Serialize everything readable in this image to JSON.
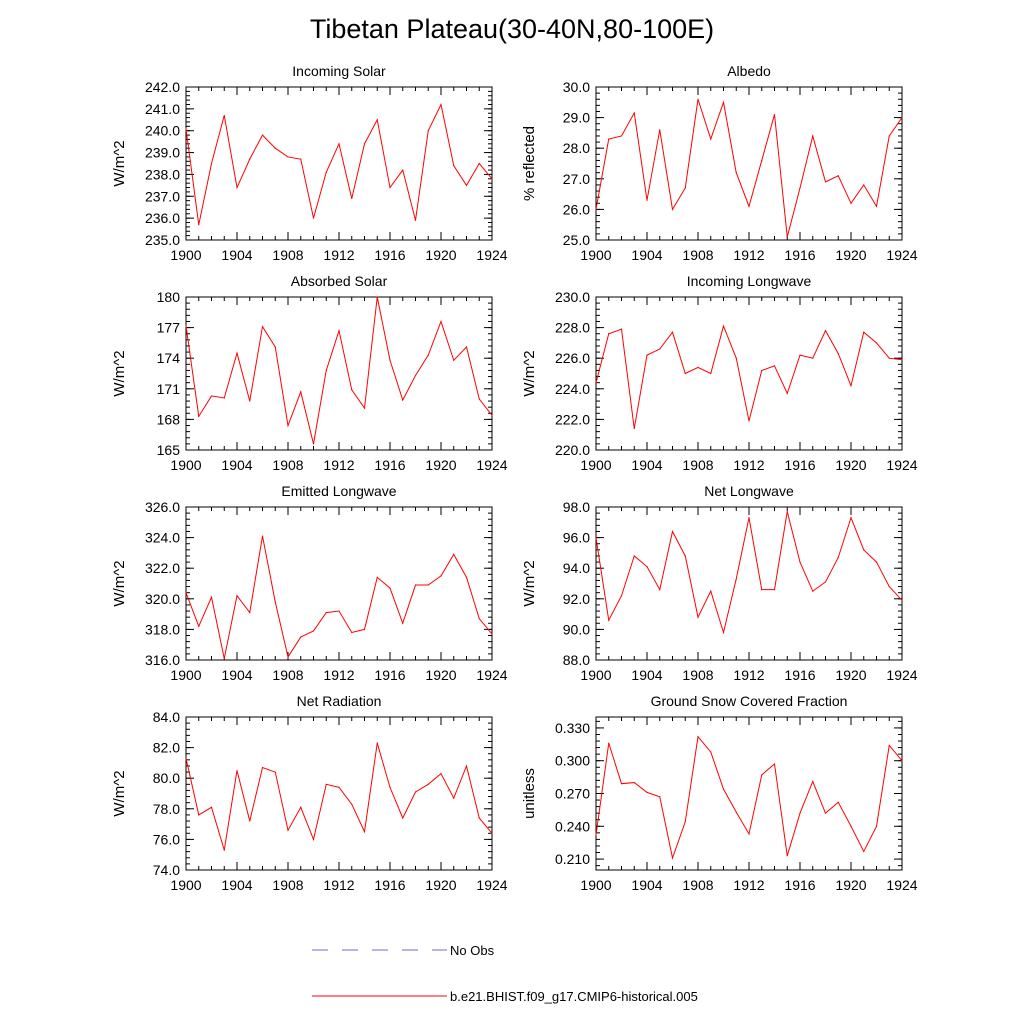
{
  "title": "Tibetan Plateau(30-40N,80-100E)",
  "colors": {
    "model_line": "#ff0000",
    "obs_line": "#6b6bd6",
    "axis": "#000000"
  },
  "legend": {
    "obs_label": "No Obs",
    "model_label": "b.e21.BHIST.f09_g17.CMIP6-historical.005"
  },
  "chart_data": [
    {
      "type": "line",
      "title": "Incoming Solar",
      "ylabel": "W/m^2",
      "xlabel": "",
      "x": [
        1900,
        1901,
        1902,
        1903,
        1904,
        1905,
        1906,
        1907,
        1908,
        1909,
        1910,
        1911,
        1912,
        1913,
        1914,
        1915,
        1916,
        1917,
        1918,
        1919,
        1920,
        1921,
        1922,
        1923,
        1924
      ],
      "xlim": [
        1900,
        1924
      ],
      "xticks": [
        "1900",
        "1904",
        "1908",
        "1912",
        "1916",
        "1920",
        "1924"
      ],
      "ylim": [
        235,
        242
      ],
      "yticks": [
        "235.0",
        "236.0",
        "237.0",
        "238.0",
        "239.0",
        "240.0",
        "241.0",
        "242.0"
      ],
      "series": [
        {
          "name": "b.e21.BHIST.f09_g17.CMIP6-historical.005",
          "values": [
            240.1,
            235.7,
            238.5,
            240.7,
            237.4,
            238.7,
            239.8,
            239.2,
            238.8,
            238.7,
            236.0,
            238.1,
            239.4,
            236.9,
            239.4,
            240.5,
            237.4,
            238.2,
            235.9,
            240.0,
            241.2,
            238.4,
            237.5,
            238.5,
            237.8
          ]
        }
      ]
    },
    {
      "type": "line",
      "title": "Albedo",
      "ylabel": "% reflected",
      "xlabel": "",
      "x": [
        1900,
        1901,
        1902,
        1903,
        1904,
        1905,
        1906,
        1907,
        1908,
        1909,
        1910,
        1911,
        1912,
        1913,
        1914,
        1915,
        1916,
        1917,
        1918,
        1919,
        1920,
        1921,
        1922,
        1923,
        1924
      ],
      "xlim": [
        1900,
        1924
      ],
      "xticks": [
        "1900",
        "1904",
        "1908",
        "1912",
        "1916",
        "1920",
        "1924"
      ],
      "ylim": [
        25,
        30
      ],
      "yticks": [
        "25.0",
        "26.0",
        "27.0",
        "28.0",
        "29.0",
        "30.0"
      ],
      "series": [
        {
          "name": "b.e21.BHIST.f09_g17.CMIP6-historical.005",
          "values": [
            26.0,
            28.3,
            28.4,
            29.15,
            26.3,
            28.6,
            26.0,
            26.7,
            29.6,
            28.3,
            29.5,
            27.2,
            26.1,
            27.6,
            29.1,
            25.1,
            26.7,
            28.4,
            26.9,
            27.1,
            26.2,
            26.8,
            26.1,
            28.4,
            29.0
          ]
        }
      ]
    },
    {
      "type": "line",
      "title": "Absorbed Solar",
      "ylabel": "W/m^2",
      "xlabel": "",
      "x": [
        1900,
        1901,
        1902,
        1903,
        1904,
        1905,
        1906,
        1907,
        1908,
        1909,
        1910,
        1911,
        1912,
        1913,
        1914,
        1915,
        1916,
        1917,
        1918,
        1919,
        1920,
        1921,
        1922,
        1923,
        1924
      ],
      "xlim": [
        1900,
        1924
      ],
      "xticks": [
        "1900",
        "1904",
        "1908",
        "1912",
        "1916",
        "1920",
        "1924"
      ],
      "ylim": [
        165,
        180
      ],
      "yticks": [
        "165",
        "168",
        "171",
        "174",
        "177",
        "180"
      ],
      "series": [
        {
          "name": "b.e21.BHIST.f09_g17.CMIP6-historical.005",
          "values": [
            177.2,
            168.3,
            170.3,
            170.1,
            174.5,
            169.8,
            177.1,
            175.1,
            167.4,
            170.7,
            165.6,
            172.8,
            176.7,
            170.9,
            169.1,
            180.0,
            173.8,
            169.9,
            172.3,
            174.3,
            177.6,
            173.8,
            175.1,
            170.0,
            168.4
          ]
        }
      ]
    },
    {
      "type": "line",
      "title": "Incoming Longwave",
      "ylabel": "W/m^2",
      "xlabel": "",
      "x": [
        1900,
        1901,
        1902,
        1903,
        1904,
        1905,
        1906,
        1907,
        1908,
        1909,
        1910,
        1911,
        1912,
        1913,
        1914,
        1915,
        1916,
        1917,
        1918,
        1919,
        1920,
        1921,
        1922,
        1923,
        1924
      ],
      "xlim": [
        1900,
        1924
      ],
      "xticks": [
        "1900",
        "1904",
        "1908",
        "1912",
        "1916",
        "1920",
        "1924"
      ],
      "ylim": [
        220,
        230
      ],
      "yticks": [
        "220.0",
        "222.0",
        "224.0",
        "226.0",
        "228.0",
        "230.0"
      ],
      "series": [
        {
          "name": "b.e21.BHIST.f09_g17.CMIP6-historical.005",
          "values": [
            224.4,
            227.6,
            227.9,
            221.4,
            226.2,
            226.6,
            227.7,
            225.0,
            225.4,
            225.0,
            228.1,
            226.0,
            221.9,
            225.2,
            225.5,
            223.7,
            226.2,
            226.0,
            227.8,
            226.3,
            224.2,
            227.7,
            227.0,
            226.0,
            225.9
          ]
        }
      ]
    },
    {
      "type": "line",
      "title": "Emitted Longwave",
      "ylabel": "W/m^2",
      "xlabel": "",
      "x": [
        1900,
        1901,
        1902,
        1903,
        1904,
        1905,
        1906,
        1907,
        1908,
        1909,
        1910,
        1911,
        1912,
        1913,
        1914,
        1915,
        1916,
        1917,
        1918,
        1919,
        1920,
        1921,
        1922,
        1923,
        1924
      ],
      "xlim": [
        1900,
        1924
      ],
      "xticks": [
        "1900",
        "1904",
        "1908",
        "1912",
        "1916",
        "1920",
        "1924"
      ],
      "ylim": [
        316,
        326
      ],
      "yticks": [
        "316.0",
        "318.0",
        "320.0",
        "322.0",
        "324.0",
        "326.0"
      ],
      "series": [
        {
          "name": "b.e21.BHIST.f09_g17.CMIP6-historical.005",
          "values": [
            320.4,
            318.2,
            320.1,
            316.1,
            320.2,
            319.1,
            324.1,
            319.8,
            316.2,
            317.5,
            317.9,
            319.1,
            319.2,
            317.8,
            318.0,
            321.4,
            320.7,
            318.4,
            320.9,
            320.9,
            321.5,
            322.9,
            321.4,
            318.7,
            317.7
          ]
        }
      ]
    },
    {
      "type": "line",
      "title": "Net Longwave",
      "ylabel": "W/m^2",
      "xlabel": "",
      "x": [
        1900,
        1901,
        1902,
        1903,
        1904,
        1905,
        1906,
        1907,
        1908,
        1909,
        1910,
        1911,
        1912,
        1913,
        1914,
        1915,
        1916,
        1917,
        1918,
        1919,
        1920,
        1921,
        1922,
        1923,
        1924
      ],
      "xlim": [
        1900,
        1924
      ],
      "xticks": [
        "1900",
        "1904",
        "1908",
        "1912",
        "1916",
        "1920",
        "1924"
      ],
      "ylim": [
        88,
        98
      ],
      "yticks": [
        "88.0",
        "90.0",
        "92.0",
        "94.0",
        "96.0",
        "98.0"
      ],
      "series": [
        {
          "name": "b.e21.BHIST.f09_g17.CMIP6-historical.005",
          "values": [
            96.0,
            90.6,
            92.2,
            94.8,
            94.1,
            92.6,
            96.4,
            94.8,
            90.8,
            92.5,
            89.8,
            93.3,
            97.3,
            92.6,
            92.6,
            97.7,
            94.4,
            92.5,
            93.1,
            94.7,
            97.3,
            95.2,
            94.4,
            92.8,
            91.9
          ]
        }
      ]
    },
    {
      "type": "line",
      "title": "Net Radiation",
      "ylabel": "W/m^2",
      "xlabel": "",
      "x": [
        1900,
        1901,
        1902,
        1903,
        1904,
        1905,
        1906,
        1907,
        1908,
        1909,
        1910,
        1911,
        1912,
        1913,
        1914,
        1915,
        1916,
        1917,
        1918,
        1919,
        1920,
        1921,
        1922,
        1923,
        1924
      ],
      "xlim": [
        1900,
        1924
      ],
      "xticks": [
        "1900",
        "1904",
        "1908",
        "1912",
        "1916",
        "1920",
        "1924"
      ],
      "ylim": [
        74,
        84
      ],
      "yticks": [
        "74.0",
        "76.0",
        "78.0",
        "80.0",
        "82.0",
        "84.0"
      ],
      "series": [
        {
          "name": "b.e21.BHIST.f09_g17.CMIP6-historical.005",
          "values": [
            81.3,
            77.6,
            78.1,
            75.3,
            80.5,
            77.2,
            80.7,
            80.4,
            76.6,
            78.1,
            76.0,
            79.6,
            79.4,
            78.3,
            76.5,
            82.3,
            79.4,
            77.4,
            79.1,
            79.6,
            80.3,
            78.7,
            80.8,
            77.4,
            76.4
          ]
        }
      ]
    },
    {
      "type": "line",
      "title": "Ground Snow Covered Fraction",
      "ylabel": "unitless",
      "xlabel": "",
      "x": [
        1900,
        1901,
        1902,
        1903,
        1904,
        1905,
        1906,
        1907,
        1908,
        1909,
        1910,
        1911,
        1912,
        1913,
        1914,
        1915,
        1916,
        1917,
        1918,
        1919,
        1920,
        1921,
        1922,
        1923,
        1924
      ],
      "xlim": [
        1900,
        1924
      ],
      "xticks": [
        "1900",
        "1904",
        "1908",
        "1912",
        "1916",
        "1920",
        "1924"
      ],
      "ylim": [
        0.2,
        0.34
      ],
      "yticks": [
        "0.210",
        "0.240",
        "0.270",
        "0.300",
        "0.330"
      ],
      "ytick_values": [
        0.21,
        0.24,
        0.27,
        0.3,
        0.33
      ],
      "series": [
        {
          "name": "b.e21.BHIST.f09_g17.CMIP6-historical.005",
          "values": [
            0.232,
            0.316,
            0.279,
            0.28,
            0.271,
            0.267,
            0.211,
            0.244,
            0.322,
            0.308,
            0.274,
            0.253,
            0.233,
            0.287,
            0.297,
            0.213,
            0.252,
            0.281,
            0.252,
            0.262,
            0.24,
            0.217,
            0.24,
            0.314,
            0.3
          ]
        }
      ]
    }
  ]
}
